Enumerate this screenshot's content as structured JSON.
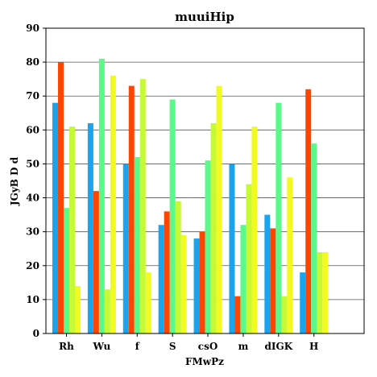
{
  "chart_data": {
    "type": "bar",
    "title": "muuiHip",
    "xlabel": "FMwPz",
    "ylabel": "JGyB D d",
    "ylim": [
      0,
      90
    ],
    "yticks": [
      0,
      10,
      20,
      30,
      40,
      50,
      60,
      70,
      80,
      90
    ],
    "grid": true,
    "categories": [
      "Rh",
      "Wu",
      "f",
      "S",
      "csO",
      "m",
      "dIGK",
      "H"
    ],
    "series": [
      {
        "color": "#1aa3ef",
        "values": [
          68,
          62,
          50,
          32,
          28,
          50,
          35,
          18
        ]
      },
      {
        "color": "#ff4500",
        "values": [
          80,
          42,
          73,
          36,
          30,
          11,
          31,
          72
        ]
      },
      {
        "color": "#5cf98a",
        "values": [
          37,
          81,
          52,
          69,
          51,
          32,
          68,
          56
        ]
      },
      {
        "color": "#c6f936",
        "values": [
          61,
          13,
          75,
          39,
          62,
          44,
          11,
          24
        ]
      },
      {
        "color": "#f1fb1e",
        "values": [
          14,
          76,
          18,
          29,
          73,
          61,
          46,
          24
        ]
      }
    ]
  }
}
